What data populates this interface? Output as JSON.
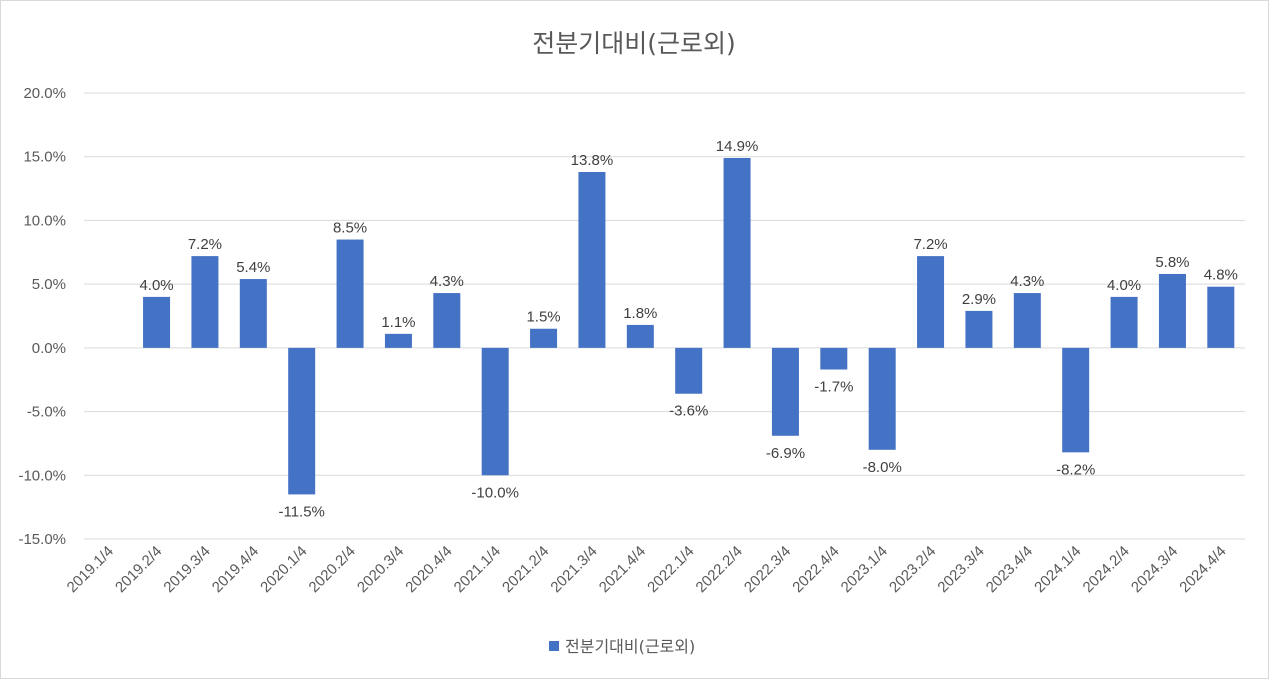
{
  "chart_data": {
    "type": "bar",
    "title": "전분기대비(근로외)",
    "xlabel": "",
    "ylabel": "",
    "ylim": [
      -15,
      20
    ],
    "ytick_step": 5,
    "y_tick_labels": [
      "20.0%",
      "15.0%",
      "10.0%",
      "5.0%",
      "0.0%",
      "-5.0%",
      "-10.0%",
      "-15.0%"
    ],
    "grid": true,
    "legend_position": "bottom",
    "categories": [
      "2019.1/4",
      "2019.2/4",
      "2019.3/4",
      "2019.4/4",
      "2020.1/4",
      "2020.2/4",
      "2020.3/4",
      "2020.4/4",
      "2021.1/4",
      "2021.2/4",
      "2021.3/4",
      "2021.4/4",
      "2022.1/4",
      "2022.2/4",
      "2022.3/4",
      "2022.4/4",
      "2023.1/4",
      "2023.2/4",
      "2023.3/4",
      "2023.4/4",
      "2024.1/4",
      "2024.2/4",
      "2024.3/4",
      "2024.4/4"
    ],
    "series": [
      {
        "name": "전분기대비(근로외)",
        "color": "#4472c4",
        "values": [
          null,
          4.0,
          7.2,
          5.4,
          -11.5,
          8.5,
          1.1,
          4.3,
          -10.0,
          1.5,
          13.8,
          1.8,
          -3.6,
          14.9,
          -6.9,
          -1.7,
          -8.0,
          7.2,
          2.9,
          4.3,
          -8.2,
          4.0,
          5.8,
          4.8
        ],
        "labels": [
          "",
          "4.0%",
          "7.2%",
          "5.4%",
          "-11.5%",
          "8.5%",
          "1.1%",
          "4.3%",
          "-10.0%",
          "1.5%",
          "13.8%",
          "1.8%",
          "-3.6%",
          "14.9%",
          "-6.9%",
          "-1.7%",
          "-8.0%",
          "7.2%",
          "2.9%",
          "4.3%",
          "-8.2%",
          "4.0%",
          "5.8%",
          "4.8%"
        ]
      }
    ]
  }
}
